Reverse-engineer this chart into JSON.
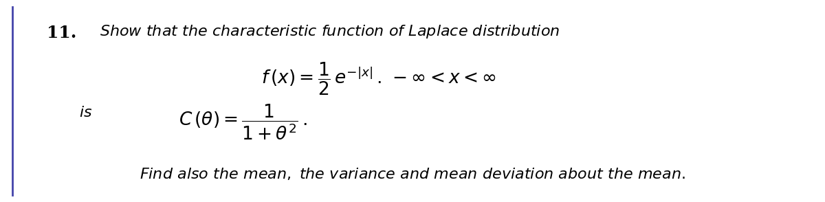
{
  "background_color": "#ffffff",
  "left_border_color": "#4444aa",
  "number": "11.",
  "figsize": [
    12.0,
    2.94
  ],
  "dpi": 100,
  "fontsize_title": 16,
  "fontsize_math": 17,
  "fontsize_last": 15,
  "fontsize_is": 16,
  "fontsize_number": 18
}
